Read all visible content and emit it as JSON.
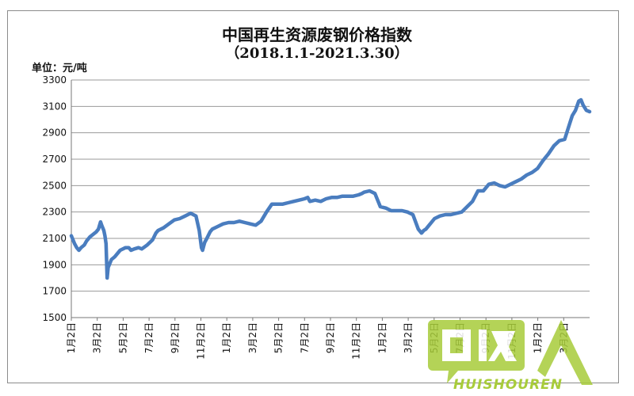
{
  "chart_data": {
    "type": "line",
    "title": "中国再生资源废钢价格指数",
    "subtitle": "（2018.1.1-2021.3.30）",
    "unit_label": "单位：元/吨",
    "ylim": [
      1500,
      3300
    ],
    "yticks": [
      1500,
      1700,
      1900,
      2100,
      2300,
      2500,
      2700,
      2900,
      3100,
      3300
    ],
    "xticks": [
      "1月2日",
      "3月2日",
      "5月2日",
      "7月2日",
      "9月2日",
      "11月2日",
      "1月2日",
      "3月2日",
      "5月2日",
      "7月2日",
      "9月2日",
      "11月2日",
      "1月2日",
      "3月2日",
      "5月2日",
      "7月2日",
      "9月2日",
      "11月2日",
      "1月2日",
      "3月2日"
    ],
    "grid": "horizontal",
    "line_color": "#4a7dbf",
    "series": [
      {
        "x": [
          0,
          3,
          5,
          7,
          9,
          12,
          14,
          17,
          20,
          23,
          25,
          27,
          28,
          30,
          31,
          32,
          33,
          34,
          35,
          37,
          40,
          45,
          50,
          53,
          55,
          58,
          62,
          65,
          70,
          75,
          78,
          80,
          85,
          90,
          95,
          100,
          105,
          110,
          115,
          118,
          120,
          121,
          122,
          123,
          125,
          128,
          130,
          135,
          140,
          145,
          150,
          155,
          160,
          165,
          170,
          175,
          180,
          185,
          190,
          195,
          200,
          205,
          210,
          215,
          218,
          220,
          225,
          230,
          235,
          240,
          245,
          250,
          255,
          260,
          265,
          268,
          270,
          275,
          280,
          285,
          290,
          295,
          300,
          305,
          310,
          315,
          320,
          323,
          325,
          327,
          330,
          335,
          340,
          345,
          350,
          355,
          360,
          365,
          370,
          375,
          380,
          385,
          390,
          395,
          400,
          405,
          410,
          415,
          420,
          425,
          430,
          435,
          440,
          445,
          450,
          455,
          460,
          462,
          465,
          468,
          470,
          472,
          475,
          478
        ],
        "y": [
          2120,
          2060,
          2030,
          2010,
          2030,
          2050,
          2080,
          2110,
          2130,
          2150,
          2170,
          2225,
          2200,
          2160,
          2120,
          2060,
          1800,
          1880,
          1900,
          1940,
          1960,
          2010,
          2030,
          2030,
          2010,
          2020,
          2030,
          2020,
          2050,
          2090,
          2140,
          2160,
          2180,
          2210,
          2240,
          2250,
          2270,
          2290,
          2270,
          2160,
          2030,
          2010,
          2040,
          2070,
          2100,
          2150,
          2170,
          2190,
          2210,
          2220,
          2220,
          2230,
          2220,
          2210,
          2200,
          2230,
          2300,
          2360,
          2360,
          2360,
          2370,
          2380,
          2390,
          2400,
          2410,
          2380,
          2390,
          2380,
          2400,
          2410,
          2410,
          2420,
          2420,
          2420,
          2430,
          2440,
          2450,
          2460,
          2440,
          2340,
          2330,
          2310,
          2310,
          2310,
          2300,
          2280,
          2170,
          2140,
          2160,
          2170,
          2200,
          2250,
          2270,
          2280,
          2280,
          2290,
          2300,
          2340,
          2380,
          2460,
          2460,
          2510,
          2520,
          2500,
          2490,
          2510,
          2530,
          2550,
          2580,
          2600,
          2630,
          2690,
          2740,
          2800,
          2840,
          2850,
          2980,
          3030,
          3070,
          3140,
          3150,
          3110,
          3070,
          3060
        ]
      }
    ]
  },
  "watermark": {
    "text": "HUISHOUREN",
    "color": "#a8cc3a"
  }
}
